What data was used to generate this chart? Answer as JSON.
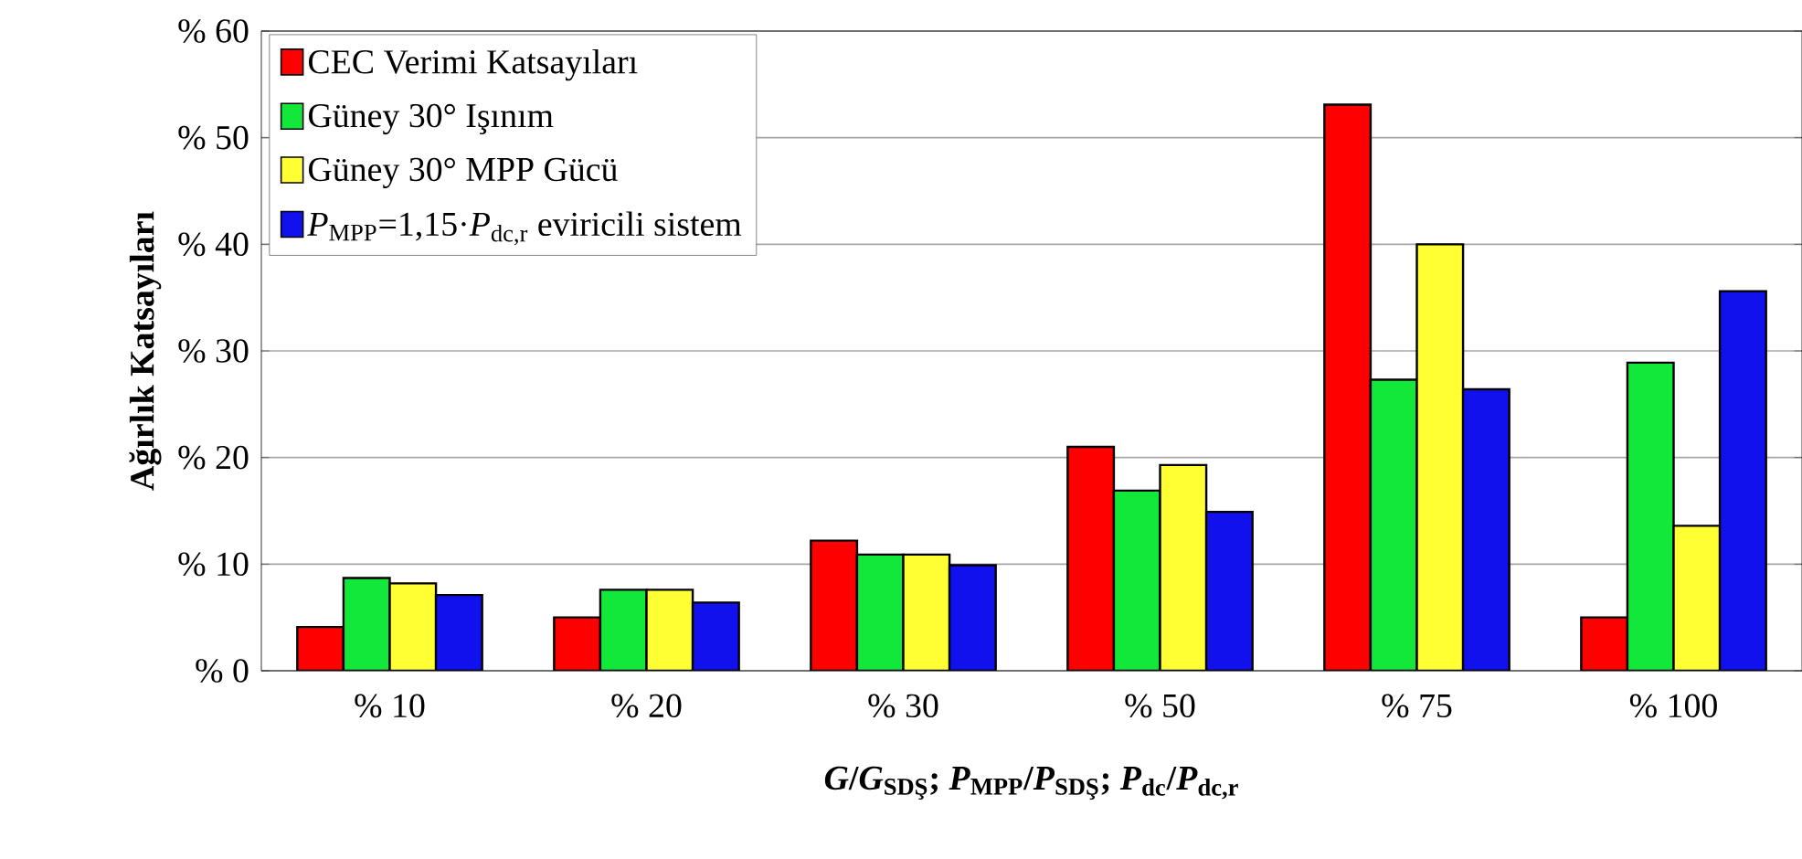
{
  "chart_data": {
    "type": "bar",
    "xlabel": "*G*/*G*$_{SDŞ}$; *P*$_{MPP}$/*P*$_{SDŞ}$; *P*$_{dc}$/*P*$_{dc,r}$",
    "ylabel": "Ağırlık Katsayıları",
    "categories": [
      "% 10",
      "% 20",
      "% 30",
      "% 50",
      "% 75",
      "% 100"
    ],
    "series": [
      {
        "name": "CEC Verimi Katsayıları",
        "color": "#ff0000",
        "values": [
          4.1,
          5,
          12.2,
          21,
          53.1,
          5
        ]
      },
      {
        "name": "Güney 30° Işınım",
        "color": "#11e83a",
        "values": [
          8.7,
          7.6,
          10.9,
          16.9,
          27.3,
          28.9
        ]
      },
      {
        "name": "Güney 30° MPP Gücü",
        "color": "#ffff33",
        "values": [
          8.2,
          7.6,
          10.9,
          19.3,
          40,
          13.6
        ]
      },
      {
        "name": "*P*$_{MPP}$=1,15·*P*$_{dc,r}$ eviricili sistem",
        "color": "#1111ee",
        "values": [
          7.1,
          6.4,
          9.9,
          14.9,
          26.4,
          35.6
        ]
      }
    ],
    "ylim": [
      0,
      60
    ],
    "yticks": [
      {
        "value": 0,
        "label": "% 0"
      },
      {
        "value": 10,
        "label": "% 10"
      },
      {
        "value": 20,
        "label": "% 20"
      },
      {
        "value": 30,
        "label": "% 30"
      },
      {
        "value": 40,
        "label": "% 40"
      },
      {
        "value": 50,
        "label": "% 50"
      },
      {
        "value": 60,
        "label": "% 60"
      }
    ],
    "grid": "y",
    "legend": "top left"
  }
}
